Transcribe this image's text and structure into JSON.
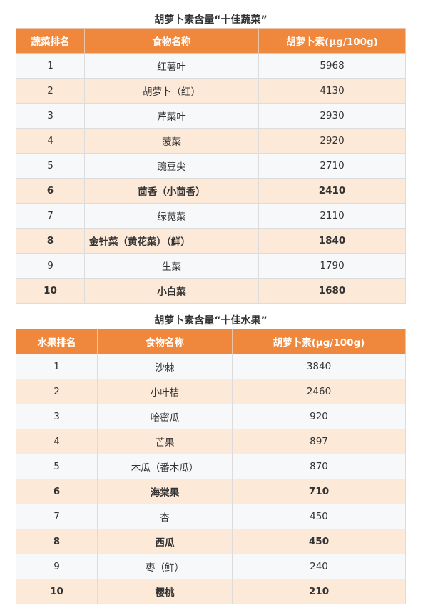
{
  "tables": [
    {
      "title": "胡萝卜素含量“十佳蔬菜”",
      "headers": [
        "蔬菜排名",
        "食物名称",
        "胡萝卜素(μg/100g)"
      ],
      "rows": [
        [
          "1",
          "红薯叶",
          "5968"
        ],
        [
          "2",
          "胡萝卜（红）",
          "4130"
        ],
        [
          "3",
          "芹菜叶",
          "2930"
        ],
        [
          "4",
          "菠菜",
          "2920"
        ],
        [
          "5",
          "豌豆尖",
          "2710"
        ],
        [
          "6",
          "茴香（小茴香）",
          "2410"
        ],
        [
          "7",
          "绿苋菜",
          "2110"
        ],
        [
          "8",
          "金针菜（黄花菜）（鲜）",
          "1840"
        ],
        [
          "9",
          "生菜",
          "1790"
        ],
        [
          "10",
          "小白菜",
          "1680"
        ]
      ]
    },
    {
      "title": "胡萝卜素含量“十佳水果”",
      "headers": [
        "水果排名",
        "食物名称",
        "胡萝卜素(μg/100g)"
      ],
      "rows": [
        [
          "1",
          "沙棘",
          "3840"
        ],
        [
          "2",
          "小叶桔",
          "2460"
        ],
        [
          "3",
          "哈密瓜",
          "920"
        ],
        [
          "4",
          "芒果",
          "897"
        ],
        [
          "5",
          "木瓜（番木瓜）",
          "870"
        ],
        [
          "6",
          "海棠果",
          "710"
        ],
        [
          "7",
          "杏",
          "450"
        ],
        [
          "8",
          "西瓜",
          "450"
        ],
        [
          "9",
          "枣（鲜）",
          "240"
        ],
        [
          "10",
          "樱桃",
          "210"
        ]
      ]
    }
  ],
  "colors": {
    "header": "#ef883d",
    "row_odd": "#f7f8fa",
    "row_even": "#fde9d8"
  }
}
